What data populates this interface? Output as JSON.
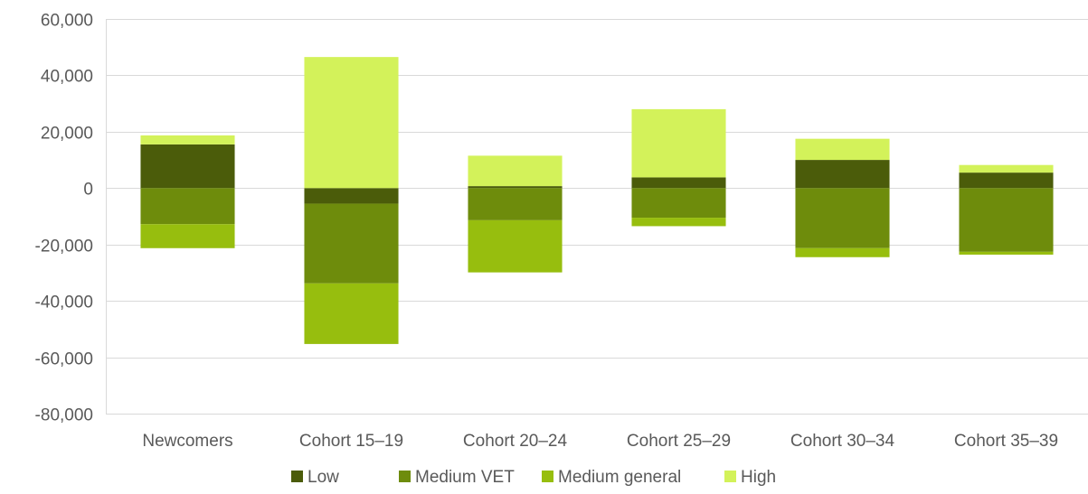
{
  "chart_data": {
    "type": "bar",
    "stacked": true,
    "categories": [
      "Newcomers",
      "Cohort 15–19",
      "Cohort 20–24",
      "Cohort 25–29",
      "Cohort 30–34",
      "Cohort 35–39"
    ],
    "series": [
      {
        "name": "Low",
        "color": "#4b5c0a",
        "values": [
          15500,
          -5500,
          700,
          3800,
          10000,
          5500
        ]
      },
      {
        "name": "Medium VET",
        "color": "#6e8c0c",
        "values": [
          -12800,
          -28300,
          -11400,
          -10500,
          -21300,
          -22600
        ]
      },
      {
        "name": "Medium general",
        "color": "#97be0e",
        "values": [
          -8500,
          -21500,
          -18500,
          -3000,
          -3200,
          -1000
        ]
      },
      {
        "name": "High",
        "color": "#d3f25a",
        "values": [
          3200,
          46500,
          10800,
          24200,
          7500,
          2700
        ]
      }
    ],
    "ylim": [
      -80000,
      60000
    ],
    "y_ticks": [
      "60,000",
      "40,000",
      "20,000",
      "0",
      "-20,000",
      "-40,000",
      "-60,000",
      "-80,000"
    ],
    "y_tick_values": [
      60000,
      40000,
      20000,
      0,
      -20000,
      -40000,
      -60000,
      -80000
    ],
    "grid": true,
    "legend_position": "bottom",
    "title": "",
    "xlabel": "",
    "ylabel": ""
  }
}
